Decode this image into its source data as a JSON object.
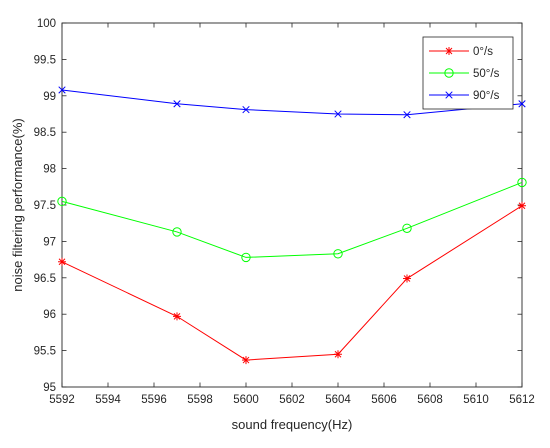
{
  "chart_data": {
    "type": "line",
    "xlabel": "sound frequency(Hz)",
    "ylabel": "noise filtering performance(%)",
    "xlim": [
      5592,
      5612
    ],
    "ylim": [
      95,
      100
    ],
    "xticks": [
      5592,
      5594,
      5596,
      5598,
      5600,
      5602,
      5604,
      5606,
      5608,
      5610,
      5612
    ],
    "yticks": [
      95,
      95.5,
      96,
      96.5,
      97,
      97.5,
      98,
      98.5,
      99,
      99.5,
      100
    ],
    "xtick_labels": [
      "5592",
      "5594",
      "5596",
      "5598",
      "5600",
      "5602",
      "5604",
      "5606",
      "5608",
      "5610",
      "5612"
    ],
    "ytick_labels": [
      "95",
      "95.5",
      "96",
      "96.5",
      "97",
      "97.5",
      "98",
      "98.5",
      "99",
      "99.5",
      "100"
    ],
    "grid": false,
    "legend_position": "top-right",
    "x": [
      5592,
      5597,
      5600,
      5604,
      5607,
      5612
    ],
    "series": [
      {
        "name": "0°/s",
        "color": "#ff0000",
        "marker": "asterisk",
        "values": [
          96.72,
          95.97,
          95.37,
          95.45,
          96.49,
          97.49
        ]
      },
      {
        "name": "50°/s",
        "color": "#00ff00",
        "marker": "circle",
        "values": [
          97.55,
          97.13,
          96.78,
          96.83,
          97.18,
          97.81
        ]
      },
      {
        "name": "90°/s",
        "color": "#0000ff",
        "marker": "x",
        "values": [
          99.08,
          98.89,
          98.81,
          98.75,
          98.74,
          98.89
        ]
      }
    ]
  }
}
